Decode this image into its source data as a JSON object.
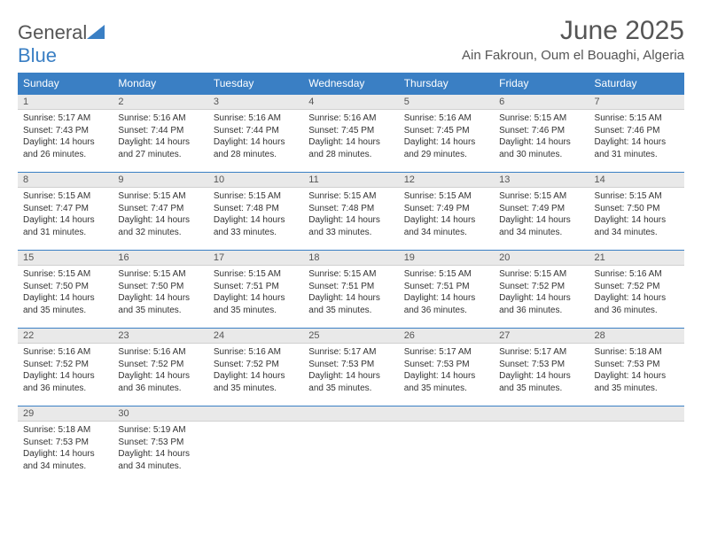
{
  "logo": {
    "text1": "General",
    "text2": "Blue"
  },
  "title": "June 2025",
  "location": "Ain Fakroun, Oum el Bouaghi, Algeria",
  "colors": {
    "header_bg": "#3a7fc4",
    "header_text": "#ffffff",
    "daynum_bg": "#e9e9e9",
    "text": "#333333",
    "logo_gray": "#555555",
    "logo_blue": "#3a7fc4"
  },
  "fonts": {
    "title_size": 30,
    "location_size": 15,
    "header_size": 12,
    "cell_size": 10
  },
  "weekdays": [
    "Sunday",
    "Monday",
    "Tuesday",
    "Wednesday",
    "Thursday",
    "Friday",
    "Saturday"
  ],
  "weeks": [
    [
      {
        "n": "1",
        "sr": "5:17 AM",
        "ss": "7:43 PM",
        "dl": "14 hours and 26 minutes."
      },
      {
        "n": "2",
        "sr": "5:16 AM",
        "ss": "7:44 PM",
        "dl": "14 hours and 27 minutes."
      },
      {
        "n": "3",
        "sr": "5:16 AM",
        "ss": "7:44 PM",
        "dl": "14 hours and 28 minutes."
      },
      {
        "n": "4",
        "sr": "5:16 AM",
        "ss": "7:45 PM",
        "dl": "14 hours and 28 minutes."
      },
      {
        "n": "5",
        "sr": "5:16 AM",
        "ss": "7:45 PM",
        "dl": "14 hours and 29 minutes."
      },
      {
        "n": "6",
        "sr": "5:15 AM",
        "ss": "7:46 PM",
        "dl": "14 hours and 30 minutes."
      },
      {
        "n": "7",
        "sr": "5:15 AM",
        "ss": "7:46 PM",
        "dl": "14 hours and 31 minutes."
      }
    ],
    [
      {
        "n": "8",
        "sr": "5:15 AM",
        "ss": "7:47 PM",
        "dl": "14 hours and 31 minutes."
      },
      {
        "n": "9",
        "sr": "5:15 AM",
        "ss": "7:47 PM",
        "dl": "14 hours and 32 minutes."
      },
      {
        "n": "10",
        "sr": "5:15 AM",
        "ss": "7:48 PM",
        "dl": "14 hours and 33 minutes."
      },
      {
        "n": "11",
        "sr": "5:15 AM",
        "ss": "7:48 PM",
        "dl": "14 hours and 33 minutes."
      },
      {
        "n": "12",
        "sr": "5:15 AM",
        "ss": "7:49 PM",
        "dl": "14 hours and 34 minutes."
      },
      {
        "n": "13",
        "sr": "5:15 AM",
        "ss": "7:49 PM",
        "dl": "14 hours and 34 minutes."
      },
      {
        "n": "14",
        "sr": "5:15 AM",
        "ss": "7:50 PM",
        "dl": "14 hours and 34 minutes."
      }
    ],
    [
      {
        "n": "15",
        "sr": "5:15 AM",
        "ss": "7:50 PM",
        "dl": "14 hours and 35 minutes."
      },
      {
        "n": "16",
        "sr": "5:15 AM",
        "ss": "7:50 PM",
        "dl": "14 hours and 35 minutes."
      },
      {
        "n": "17",
        "sr": "5:15 AM",
        "ss": "7:51 PM",
        "dl": "14 hours and 35 minutes."
      },
      {
        "n": "18",
        "sr": "5:15 AM",
        "ss": "7:51 PM",
        "dl": "14 hours and 35 minutes."
      },
      {
        "n": "19",
        "sr": "5:15 AM",
        "ss": "7:51 PM",
        "dl": "14 hours and 36 minutes."
      },
      {
        "n": "20",
        "sr": "5:15 AM",
        "ss": "7:52 PM",
        "dl": "14 hours and 36 minutes."
      },
      {
        "n": "21",
        "sr": "5:16 AM",
        "ss": "7:52 PM",
        "dl": "14 hours and 36 minutes."
      }
    ],
    [
      {
        "n": "22",
        "sr": "5:16 AM",
        "ss": "7:52 PM",
        "dl": "14 hours and 36 minutes."
      },
      {
        "n": "23",
        "sr": "5:16 AM",
        "ss": "7:52 PM",
        "dl": "14 hours and 36 minutes."
      },
      {
        "n": "24",
        "sr": "5:16 AM",
        "ss": "7:52 PM",
        "dl": "14 hours and 35 minutes."
      },
      {
        "n": "25",
        "sr": "5:17 AM",
        "ss": "7:53 PM",
        "dl": "14 hours and 35 minutes."
      },
      {
        "n": "26",
        "sr": "5:17 AM",
        "ss": "7:53 PM",
        "dl": "14 hours and 35 minutes."
      },
      {
        "n": "27",
        "sr": "5:17 AM",
        "ss": "7:53 PM",
        "dl": "14 hours and 35 minutes."
      },
      {
        "n": "28",
        "sr": "5:18 AM",
        "ss": "7:53 PM",
        "dl": "14 hours and 35 minutes."
      }
    ],
    [
      {
        "n": "29",
        "sr": "5:18 AM",
        "ss": "7:53 PM",
        "dl": "14 hours and 34 minutes."
      },
      {
        "n": "30",
        "sr": "5:19 AM",
        "ss": "7:53 PM",
        "dl": "14 hours and 34 minutes."
      },
      null,
      null,
      null,
      null,
      null
    ]
  ],
  "labels": {
    "sunrise": "Sunrise: ",
    "sunset": "Sunset: ",
    "daylight": "Daylight: "
  }
}
